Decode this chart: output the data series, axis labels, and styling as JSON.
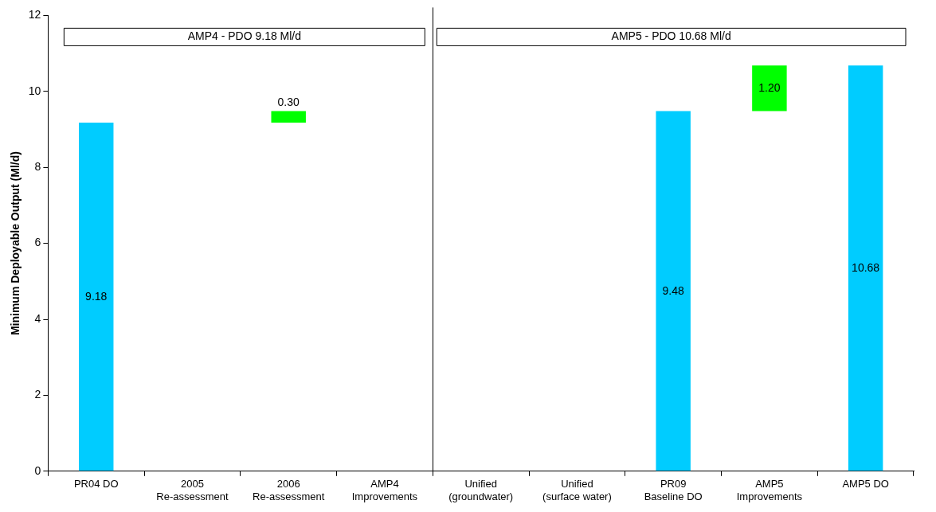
{
  "chart_data": {
    "type": "bar",
    "ylabel": "Minimum Deployable Output (Ml/d)",
    "categories": [
      "PR04 DO",
      "2005 Re-assessment",
      "2006 Re-assessment",
      "AMP4 Improvements",
      "Unified (groundwater)",
      "Unified (surface water)",
      "PR09 Baseline DO",
      "AMP5 Improvements",
      "AMP5 DO"
    ],
    "values": [
      9.18,
      null,
      0.3,
      null,
      null,
      null,
      9.48,
      1.2,
      10.68
    ],
    "value_labels": [
      "9.18",
      null,
      "0.30",
      null,
      null,
      null,
      "9.48",
      "1.20",
      "10.68"
    ],
    "base": [
      0,
      null,
      9.18,
      null,
      null,
      null,
      0,
      9.48,
      0
    ],
    "colors": [
      "#00ccff",
      null,
      "#00ff00",
      null,
      null,
      null,
      "#00ccff",
      "#00ff00",
      "#00ccff"
    ],
    "ylim": [
      0,
      12
    ],
    "yticks": [
      0,
      2,
      4,
      6,
      8,
      10,
      12
    ],
    "grid": false,
    "legend": false,
    "annotations": [
      "AMP4 - PDO 9.18 Ml/d",
      "AMP5 - PDO 10.68 Ml/d"
    ]
  }
}
